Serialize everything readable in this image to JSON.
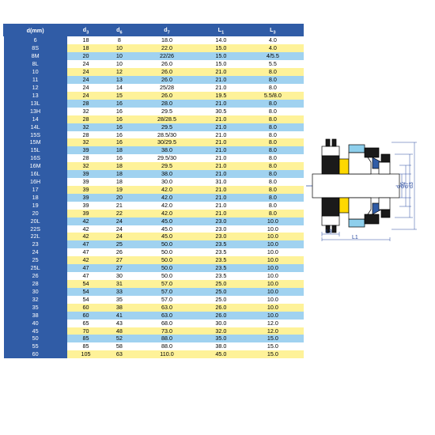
{
  "table": {
    "headers": [
      "d(mm)",
      "d3",
      "d6",
      "d7",
      "L1",
      "L3"
    ],
    "rows": [
      {
        "c": "white",
        "v": [
          "6",
          "18",
          "8",
          "18.0",
          "14.0",
          "4.0"
        ]
      },
      {
        "c": "yellow",
        "v": [
          "8S",
          "18",
          "10",
          "22.0",
          "15.0",
          "4.0"
        ]
      },
      {
        "c": "blue",
        "v": [
          "8M",
          "20",
          "10",
          "22/26",
          "15.0",
          "4/5.5"
        ]
      },
      {
        "c": "white",
        "v": [
          "8L",
          "24",
          "10",
          "26.0",
          "15.0",
          "5.5"
        ]
      },
      {
        "c": "yellow",
        "v": [
          "10",
          "24",
          "12",
          "26.0",
          "21.0",
          "8.0"
        ]
      },
      {
        "c": "blue",
        "v": [
          "11",
          "24",
          "13",
          "26.0",
          "21.0",
          "8.0"
        ]
      },
      {
        "c": "white",
        "v": [
          "12",
          "24",
          "14",
          "25/28",
          "21.0",
          "8.0"
        ]
      },
      {
        "c": "yellow",
        "v": [
          "13",
          "24",
          "15",
          "26.0",
          "19.5",
          "5.5/8.0"
        ]
      },
      {
        "c": "blue",
        "v": [
          "13L",
          "28",
          "16",
          "28.0",
          "21.0",
          "8.0"
        ]
      },
      {
        "c": "white",
        "v": [
          "13H",
          "32",
          "16",
          "29.5",
          "30.5",
          "8.0"
        ]
      },
      {
        "c": "yellow",
        "v": [
          "14",
          "28",
          "16",
          "28/28.5",
          "21.0",
          "8.0"
        ]
      },
      {
        "c": "blue",
        "v": [
          "14L",
          "32",
          "16",
          "29.5",
          "21.0",
          "8.0"
        ]
      },
      {
        "c": "white",
        "v": [
          "15S",
          "28",
          "16",
          "28.5/30",
          "21.0",
          "8.0"
        ]
      },
      {
        "c": "yellow",
        "v": [
          "15M",
          "32",
          "16",
          "30/29.5",
          "21.0",
          "8.0"
        ]
      },
      {
        "c": "blue",
        "v": [
          "15L",
          "39",
          "18",
          "38.0",
          "21.0",
          "8.0"
        ]
      },
      {
        "c": "white",
        "v": [
          "16S",
          "28",
          "16",
          "29.5/30",
          "21.0",
          "8.0"
        ]
      },
      {
        "c": "yellow",
        "v": [
          "16M",
          "32",
          "18",
          "29.5",
          "21.0",
          "8.0"
        ]
      },
      {
        "c": "blue",
        "v": [
          "16L",
          "39",
          "18",
          "38.0",
          "21.0",
          "8.0"
        ]
      },
      {
        "c": "white",
        "v": [
          "16H",
          "39",
          "18",
          "30.0",
          "31.0",
          "8.0"
        ]
      },
      {
        "c": "yellow",
        "v": [
          "17",
          "39",
          "19",
          "42.0",
          "21.0",
          "8.0"
        ]
      },
      {
        "c": "blue",
        "v": [
          "18",
          "39",
          "20",
          "42.0",
          "21.0",
          "8.0"
        ]
      },
      {
        "c": "white",
        "v": [
          "19",
          "39",
          "21",
          "42.0",
          "21.0",
          "8.0"
        ]
      },
      {
        "c": "yellow",
        "v": [
          "20",
          "39",
          "22",
          "42.0",
          "21.0",
          "8.0"
        ]
      },
      {
        "c": "blue",
        "v": [
          "20L",
          "42",
          "24",
          "45.0",
          "23.0",
          "10.0"
        ]
      },
      {
        "c": "white",
        "v": [
          "22S",
          "42",
          "24",
          "45.0",
          "23.0",
          "10.0"
        ]
      },
      {
        "c": "yellow",
        "v": [
          "22L",
          "42",
          "24",
          "45.0",
          "23.0",
          "10.0"
        ]
      },
      {
        "c": "blue",
        "v": [
          "23",
          "47",
          "25",
          "50.0",
          "23.5",
          "10.0"
        ]
      },
      {
        "c": "white",
        "v": [
          "24",
          "47",
          "26",
          "50.0",
          "23.5",
          "10.0"
        ]
      },
      {
        "c": "yellow",
        "v": [
          "25",
          "42",
          "27",
          "50.0",
          "23.5",
          "10.0"
        ]
      },
      {
        "c": "blue",
        "v": [
          "25L",
          "47",
          "27",
          "50.0",
          "23.5",
          "10.0"
        ]
      },
      {
        "c": "white",
        "v": [
          "26",
          "47",
          "30",
          "50.0",
          "23.5",
          "10.0"
        ]
      },
      {
        "c": "yellow",
        "v": [
          "28",
          "54",
          "31",
          "57.0",
          "25.0",
          "10.0"
        ]
      },
      {
        "c": "blue",
        "v": [
          "30",
          "54",
          "33",
          "57.0",
          "25.0",
          "10.0"
        ]
      },
      {
        "c": "white",
        "v": [
          "32",
          "54",
          "35",
          "57.0",
          "25.0",
          "10.0"
        ]
      },
      {
        "c": "yellow",
        "v": [
          "35",
          "60",
          "38",
          "63.0",
          "26.0",
          "10.0"
        ]
      },
      {
        "c": "blue",
        "v": [
          "38",
          "60",
          "41",
          "63.0",
          "26.0",
          "10.0"
        ]
      },
      {
        "c": "white",
        "v": [
          "40",
          "65",
          "43",
          "68.0",
          "30.0",
          "12.0"
        ]
      },
      {
        "c": "yellow",
        "v": [
          "45",
          "70",
          "48",
          "73.0",
          "32.0",
          "12.0"
        ]
      },
      {
        "c": "blue",
        "v": [
          "50",
          "85",
          "52",
          "88.0",
          "35.0",
          "15.0"
        ]
      },
      {
        "c": "white",
        "v": [
          "55",
          "85",
          "58",
          "88.0",
          "38.0",
          "15.0"
        ]
      },
      {
        "c": "yellow",
        "v": [
          "60",
          "105",
          "63",
          "110.0",
          "45.0",
          "15.0"
        ]
      }
    ]
  },
  "diagram": {
    "labels": {
      "d": "d",
      "d6": "d6",
      "d7": "d7",
      "d3": "d3",
      "L3": "L3",
      "L1": "L1"
    },
    "colors": {
      "body": "#1a1a1a",
      "black": "#000",
      "white": "#fff",
      "blue": "#305ca6",
      "cyan": "#8ecfec",
      "yellow": "#fed800",
      "line": "#2a4ba0"
    }
  }
}
